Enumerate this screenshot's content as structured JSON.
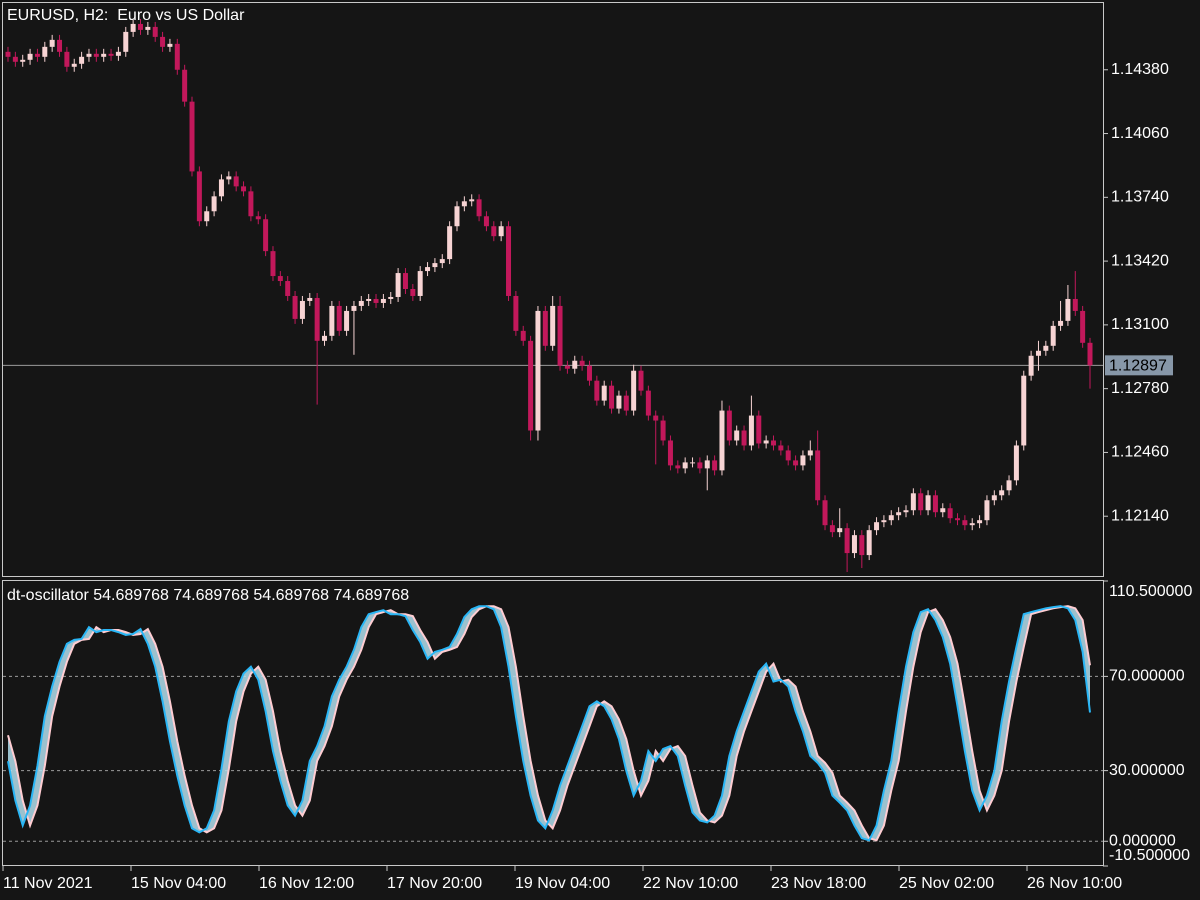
{
  "chart_data": [
    {
      "type": "candlestick",
      "title": "EURUSD, H2:  Euro vs US Dollar",
      "up_color": "#f7d4d4",
      "down_color": "#c2185b",
      "ylim": [
        1.11835,
        1.1472
      ],
      "yticks": [
        {
          "value": 1.1438,
          "label": "1.14380"
        },
        {
          "value": 1.1406,
          "label": "1.14060"
        },
        {
          "value": 1.1374,
          "label": "1.13740"
        },
        {
          "value": 1.1342,
          "label": "1.13420"
        },
        {
          "value": 1.131,
          "label": "1.13100"
        },
        {
          "value": 1.1278,
          "label": "1.12780"
        },
        {
          "value": 1.1246,
          "label": "1.12460"
        },
        {
          "value": 1.1214,
          "label": "1.12140"
        }
      ],
      "current_price": {
        "value": 1.12897,
        "label": "1.12897"
      },
      "open": [
        1.1447,
        1.14445,
        1.1442,
        1.1443,
        1.1446,
        1.14445,
        1.14495,
        1.1453,
        1.1447,
        1.14395,
        1.1441,
        1.14445,
        1.1446,
        1.14445,
        1.1446,
        1.1445,
        1.1447,
        1.1457,
        1.1461,
        1.1458,
        1.14595,
        1.14545,
        1.14495,
        1.1451,
        1.1438,
        1.1422,
        1.1387,
        1.1362,
        1.1367,
        1.13745,
        1.1383,
        1.13845,
        1.13795,
        1.1377,
        1.13645,
        1.1363,
        1.1347,
        1.13345,
        1.1332,
        1.13245,
        1.1313,
        1.1322,
        1.13235,
        1.1302,
        1.13045,
        1.13195,
        1.1307,
        1.1317,
        1.13195,
        1.1322,
        1.1323,
        1.1321,
        1.1323,
        1.1324,
        1.1336,
        1.1328,
        1.13245,
        1.1337,
        1.1339,
        1.1341,
        1.1343,
        1.13595,
        1.13695,
        1.1372,
        1.1373,
        1.13645,
        1.13595,
        1.13545,
        1.13595,
        1.13245,
        1.1307,
        1.1302,
        1.1257,
        1.1317,
        1.12995,
        1.13195,
        1.12895,
        1.1288,
        1.1292,
        1.12895,
        1.1282,
        1.1272,
        1.12795,
        1.1268,
        1.12745,
        1.1267,
        1.1287,
        1.1277,
        1.12645,
        1.1262,
        1.1252,
        1.12395,
        1.1238,
        1.1241,
        1.1241,
        1.1238,
        1.1242,
        1.1237,
        1.1267,
        1.1252,
        1.1257,
        1.12495,
        1.12645,
        1.12505,
        1.1252,
        1.12495,
        1.1247,
        1.1242,
        1.12395,
        1.12445,
        1.1247,
        1.1222,
        1.12095,
        1.1206,
        1.1208,
        1.11955,
        1.12045,
        1.11945,
        1.1207,
        1.1211,
        1.1212,
        1.12145,
        1.1216,
        1.1217,
        1.12255,
        1.1217,
        1.12245,
        1.1216,
        1.1218,
        1.1213,
        1.1212,
        1.12095,
        1.12105,
        1.1212,
        1.1222,
        1.12245,
        1.1227,
        1.1232,
        1.12495,
        1.12845,
        1.12945,
        1.1297,
        1.12995,
        1.13095,
        1.1312,
        1.1323,
        1.1317,
        1.1301
      ],
      "high": [
        1.14495,
        1.1447,
        1.14455,
        1.14485,
        1.14485,
        1.1452,
        1.14555,
        1.14555,
        1.14495,
        1.14435,
        1.1447,
        1.14485,
        1.14485,
        1.14485,
        1.14485,
        1.14495,
        1.14595,
        1.14635,
        1.14635,
        1.1462,
        1.1462,
        1.1457,
        1.14535,
        1.14535,
        1.14405,
        1.14245,
        1.13895,
        1.13695,
        1.1377,
        1.13855,
        1.1387,
        1.1387,
        1.1382,
        1.13795,
        1.1367,
        1.13655,
        1.13495,
        1.1337,
        1.13345,
        1.1327,
        1.13245,
        1.1326,
        1.1326,
        1.1307,
        1.1322,
        1.1322,
        1.13195,
        1.1322,
        1.13245,
        1.13255,
        1.13255,
        1.13255,
        1.13265,
        1.13385,
        1.13385,
        1.13305,
        1.13395,
        1.13415,
        1.13435,
        1.13455,
        1.1362,
        1.1372,
        1.13745,
        1.13755,
        1.13755,
        1.1367,
        1.1362,
        1.1362,
        1.1362,
        1.1327,
        1.13095,
        1.13045,
        1.13195,
        1.13195,
        1.13245,
        1.13245,
        1.1292,
        1.12945,
        1.12945,
        1.1292,
        1.12845,
        1.1282,
        1.1282,
        1.1277,
        1.1277,
        1.129,
        1.12895,
        1.12795,
        1.1267,
        1.12645,
        1.12545,
        1.1242,
        1.12435,
        1.12435,
        1.12435,
        1.12445,
        1.12445,
        1.1272,
        1.12695,
        1.12595,
        1.12595,
        1.12745,
        1.1267,
        1.12545,
        1.12545,
        1.1252,
        1.12495,
        1.12445,
        1.1247,
        1.1252,
        1.1257,
        1.12245,
        1.1212,
        1.1218,
        1.12105,
        1.1207,
        1.1207,
        1.12095,
        1.12135,
        1.12145,
        1.1217,
        1.12185,
        1.12195,
        1.1228,
        1.1228,
        1.1227,
        1.1227,
        1.12205,
        1.12205,
        1.12155,
        1.12145,
        1.1213,
        1.12145,
        1.12245,
        1.1227,
        1.12295,
        1.12345,
        1.1252,
        1.1287,
        1.1297,
        1.1302,
        1.1302,
        1.1312,
        1.1322,
        1.133,
        1.1337,
        1.13195,
        1.13035
      ],
      "low": [
        1.1442,
        1.14395,
        1.14395,
        1.14405,
        1.1442,
        1.1442,
        1.1447,
        1.14445,
        1.1437,
        1.1437,
        1.14385,
        1.1442,
        1.1442,
        1.1442,
        1.14425,
        1.14425,
        1.14445,
        1.14545,
        1.14555,
        1.14555,
        1.1452,
        1.1447,
        1.1447,
        1.14355,
        1.14195,
        1.13845,
        1.13595,
        1.13595,
        1.13645,
        1.1372,
        1.13805,
        1.1377,
        1.13745,
        1.1362,
        1.13605,
        1.13445,
        1.1332,
        1.13295,
        1.1322,
        1.13105,
        1.13105,
        1.13195,
        1.127,
        1.12995,
        1.1302,
        1.13045,
        1.13045,
        1.1295,
        1.1317,
        1.13195,
        1.13185,
        1.13185,
        1.13205,
        1.13215,
        1.13255,
        1.1322,
        1.1322,
        1.13345,
        1.13365,
        1.13385,
        1.13405,
        1.1357,
        1.1367,
        1.13695,
        1.1362,
        1.1357,
        1.1352,
        1.1352,
        1.1322,
        1.13045,
        1.12995,
        1.1252,
        1.1252,
        1.1297,
        1.1297,
        1.1287,
        1.12855,
        1.12855,
        1.1287,
        1.12795,
        1.12695,
        1.12695,
        1.12655,
        1.12655,
        1.12645,
        1.12645,
        1.12745,
        1.1262,
        1.124,
        1.12495,
        1.1237,
        1.12355,
        1.12355,
        1.12385,
        1.12355,
        1.1227,
        1.12345,
        1.12345,
        1.12495,
        1.12495,
        1.1247,
        1.1247,
        1.1248,
        1.1248,
        1.1247,
        1.12445,
        1.12395,
        1.1237,
        1.1237,
        1.1242,
        1.12195,
        1.1207,
        1.12035,
        1.12035,
        1.1186,
        1.1193,
        1.1188,
        1.1192,
        1.12045,
        1.12085,
        1.12095,
        1.1212,
        1.12135,
        1.12145,
        1.12145,
        1.12145,
        1.12135,
        1.12135,
        1.12105,
        1.12095,
        1.1207,
        1.1207,
        1.1208,
        1.12095,
        1.12195,
        1.1222,
        1.12245,
        1.12295,
        1.1247,
        1.1282,
        1.1287,
        1.12945,
        1.1297,
        1.1307,
        1.13095,
        1.13145,
        1.12985,
        1.1278
      ],
      "close": [
        1.14445,
        1.1442,
        1.1443,
        1.1446,
        1.14445,
        1.14495,
        1.1453,
        1.1447,
        1.14395,
        1.1441,
        1.14445,
        1.1446,
        1.14445,
        1.1446,
        1.1445,
        1.1447,
        1.1457,
        1.1461,
        1.1458,
        1.14595,
        1.14545,
        1.14495,
        1.1451,
        1.1438,
        1.1422,
        1.1387,
        1.1362,
        1.1367,
        1.13745,
        1.1383,
        1.13845,
        1.13795,
        1.1377,
        1.13645,
        1.1363,
        1.1347,
        1.13345,
        1.1332,
        1.13245,
        1.1313,
        1.1322,
        1.13235,
        1.1302,
        1.13045,
        1.13195,
        1.1307,
        1.1317,
        1.13195,
        1.1322,
        1.1323,
        1.1321,
        1.1323,
        1.1324,
        1.1336,
        1.1328,
        1.13245,
        1.1337,
        1.1339,
        1.1341,
        1.1343,
        1.13595,
        1.13695,
        1.1372,
        1.1373,
        1.13645,
        1.13595,
        1.13545,
        1.13595,
        1.13245,
        1.1307,
        1.1302,
        1.1257,
        1.1317,
        1.12995,
        1.13195,
        1.12895,
        1.1288,
        1.1292,
        1.12895,
        1.1282,
        1.1272,
        1.12795,
        1.1268,
        1.12745,
        1.1267,
        1.1287,
        1.1277,
        1.12645,
        1.1262,
        1.1252,
        1.12395,
        1.1238,
        1.1241,
        1.1241,
        1.1238,
        1.1242,
        1.1237,
        1.1267,
        1.1252,
        1.1257,
        1.12495,
        1.12645,
        1.12505,
        1.1252,
        1.12495,
        1.1247,
        1.1242,
        1.12395,
        1.12445,
        1.1247,
        1.1222,
        1.12095,
        1.1206,
        1.1208,
        1.11955,
        1.12045,
        1.11945,
        1.1207,
        1.1211,
        1.1212,
        1.12145,
        1.1216,
        1.1217,
        1.12255,
        1.1217,
        1.12245,
        1.1216,
        1.1218,
        1.1213,
        1.1212,
        1.12095,
        1.12105,
        1.1212,
        1.1222,
        1.12245,
        1.1227,
        1.1232,
        1.12495,
        1.12845,
        1.12945,
        1.1297,
        1.12995,
        1.13095,
        1.1312,
        1.1323,
        1.1317,
        1.1301,
        1.12897
      ]
    },
    {
      "type": "line",
      "title": "dt-oscillator 54.689768 74.689768 54.689768 74.689768",
      "fill_color": "#b3dfee",
      "ylim": [
        -10.5,
        110.5
      ],
      "yticks": [
        {
          "value": 110.5,
          "label": "110.500000"
        },
        {
          "value": 70,
          "label": "70.000000"
        },
        {
          "value": 30,
          "label": "30.000000"
        },
        {
          "value": 0,
          "label": "0.000000"
        },
        {
          "value": -10.5,
          "label": "-10.500000"
        }
      ],
      "series": [
        {
          "color": "#ffcdd2",
          "values": [
            45.0,
            34.0,
            17.3,
            6.7,
            15.2,
            32.0,
            53.1,
            65.7,
            76.2,
            83.8,
            85.5,
            85.9,
            90.9,
            88.8,
            89.7,
            89.7,
            88.8,
            87.6,
            88.0,
            90.1,
            83.8,
            74.1,
            59.4,
            42.5,
            27.8,
            15.2,
            5.5,
            3.8,
            5.5,
            13.1,
            30.7,
            50.9,
            63.6,
            71.2,
            74.1,
            68.6,
            55.2,
            38.3,
            25.7,
            15.2,
            10.9,
            17.3,
            34.1,
            40.4,
            48.8,
            61.5,
            68.6,
            74.1,
            81.3,
            90.9,
            96.4,
            97.3,
            98.1,
            96.4,
            96.4,
            95.6,
            89.7,
            84.6,
            77.5,
            80.4,
            81.3,
            82.5,
            88.0,
            95.2,
            98.5,
            99.8,
            99.8,
            98.5,
            90.9,
            74.1,
            53.1,
            34.1,
            19.4,
            8.8,
            5.5,
            13.1,
            23.6,
            32.0,
            40.4,
            48.8,
            57.3,
            59.4,
            57.3,
            51.8,
            43.4,
            29.9,
            19.4,
            25.7,
            38.3,
            34.1,
            39.2,
            40.4,
            36.2,
            23.6,
            12.2,
            8.8,
            8.0,
            10.9,
            19.4,
            36.2,
            46.7,
            55.2,
            63.6,
            72.0,
            75.4,
            67.8,
            68.6,
            65.7,
            55.2,
            46.7,
            36.2,
            33.3,
            29.1,
            19.4,
            16.4,
            13.1,
            6.7,
            1.3,
            0.4,
            6.7,
            21.5,
            34.1,
            55.2,
            74.1,
            88.8,
            97.3,
            98.5,
            93.9,
            86.7,
            75.4,
            57.3,
            38.3,
            21.5,
            13.1,
            19.4,
            29.9,
            50.9,
            67.8,
            82.5,
            96.4,
            97.3,
            98.1,
            98.9,
            99.4,
            99.8,
            98.9,
            93.9,
            74.689768
          ]
        },
        {
          "color": "#29b6f6",
          "values": [
            34.0,
            17.3,
            6.7,
            15.2,
            32.0,
            53.1,
            65.7,
            76.2,
            83.8,
            85.5,
            85.9,
            90.9,
            88.8,
            89.7,
            89.7,
            88.8,
            87.6,
            88.0,
            90.1,
            83.8,
            74.1,
            59.4,
            42.5,
            27.8,
            15.2,
            5.5,
            3.8,
            5.5,
            13.1,
            30.7,
            50.9,
            63.6,
            71.2,
            74.1,
            68.6,
            55.2,
            38.3,
            25.7,
            15.2,
            10.9,
            17.3,
            34.1,
            40.4,
            48.8,
            61.5,
            68.6,
            74.1,
            81.3,
            90.9,
            96.4,
            97.3,
            98.1,
            96.4,
            96.4,
            95.6,
            89.7,
            84.6,
            77.5,
            80.4,
            81.3,
            82.5,
            88.0,
            95.2,
            98.5,
            99.8,
            99.8,
            98.5,
            90.9,
            74.1,
            53.1,
            34.1,
            19.4,
            8.8,
            5.5,
            13.1,
            23.6,
            32.0,
            40.4,
            48.8,
            57.3,
            59.4,
            57.3,
            51.8,
            43.4,
            29.9,
            19.4,
            25.7,
            38.3,
            34.1,
            39.2,
            40.4,
            36.2,
            23.6,
            12.2,
            8.8,
            8.0,
            10.9,
            19.4,
            36.2,
            46.7,
            55.2,
            63.6,
            72.0,
            75.4,
            67.8,
            68.6,
            65.7,
            55.2,
            46.7,
            36.2,
            33.3,
            29.1,
            19.4,
            16.4,
            13.1,
            6.7,
            1.3,
            0.4,
            6.7,
            21.5,
            34.1,
            55.2,
            74.1,
            88.8,
            97.3,
            98.5,
            93.9,
            86.7,
            75.4,
            57.3,
            38.3,
            21.5,
            13.1,
            19.4,
            29.9,
            50.9,
            67.8,
            82.5,
            96.4,
            97.3,
            98.1,
            98.9,
            99.4,
            99.8,
            98.9,
            93.9,
            80.4,
            54.689768
          ]
        }
      ]
    }
  ],
  "time_labels": [
    "11 Nov 2021",
    "15 Nov 04:00",
    "16 Nov 12:00",
    "17 Nov 20:00",
    "19 Nov 04:00",
    "22 Nov 10:00",
    "23 Nov 18:00",
    "25 Nov 02:00",
    "26 Nov 10:00"
  ]
}
